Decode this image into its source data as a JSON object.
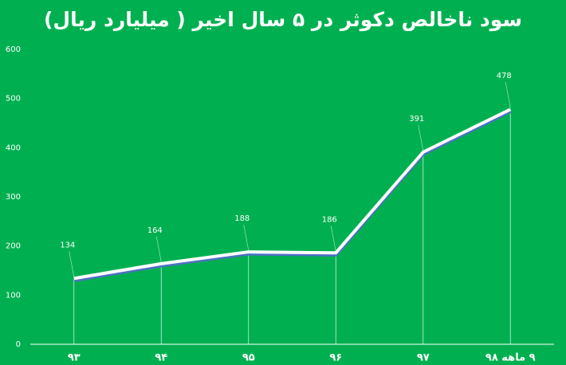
{
  "chart_data": {
    "type": "line",
    "title": "سود ناخالص دکوثر در ۵ سال اخیر ( میلیارد ریال)",
    "categories": [
      "۹۳",
      "۹۴",
      "۹۵",
      "۹۶",
      "۹۷",
      "۹ ماهه ۹۸"
    ],
    "values": [
      134,
      164,
      188,
      186,
      391,
      478
    ],
    "color": "#ffffff",
    "ylim": [
      0,
      600
    ],
    "yticks": [
      0,
      100,
      200,
      300,
      400,
      500,
      600
    ]
  }
}
